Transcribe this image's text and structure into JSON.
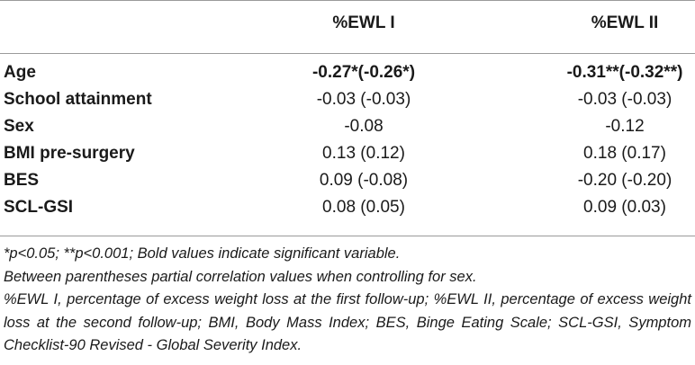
{
  "table": {
    "columns": [
      "%EWL I",
      "%EWL II"
    ],
    "rows": [
      {
        "label": "Age",
        "v1": "-0.27*(-0.26*)",
        "v2": "-0.31**(-0.32**)"
      },
      {
        "label": "School attainment",
        "v1": "-0.03 (-0.03)",
        "v2": "-0.03 (-0.03)"
      },
      {
        "label": "Sex",
        "v1": "-0.08",
        "v2": "-0.12"
      },
      {
        "label": "BMI pre-surgery",
        "v1": "0.13 (0.12)",
        "v2": "0.18 (0.17)"
      },
      {
        "label": "BES",
        "v1": "0.09 (-0.08)",
        "v2": "-0.20 (-0.20)"
      },
      {
        "label": "SCL-GSI",
        "v1": "0.08 (0.05)",
        "v2": "0.09 (0.03)"
      }
    ]
  },
  "footnotes": [
    "*p<0.05; **p<0.001; Bold values indicate significant variable.",
    "Between parentheses partial correlation values when controlling for sex.",
    "%EWL I, percentage of excess weight loss at the first follow-up; %EWL II, percentage of excess weight loss at the second follow-up; BMI, Body Mass Index; BES, Binge Eating Scale; SCL-GSI, Symptom Checklist-90 Revised - Global Severity Index."
  ]
}
